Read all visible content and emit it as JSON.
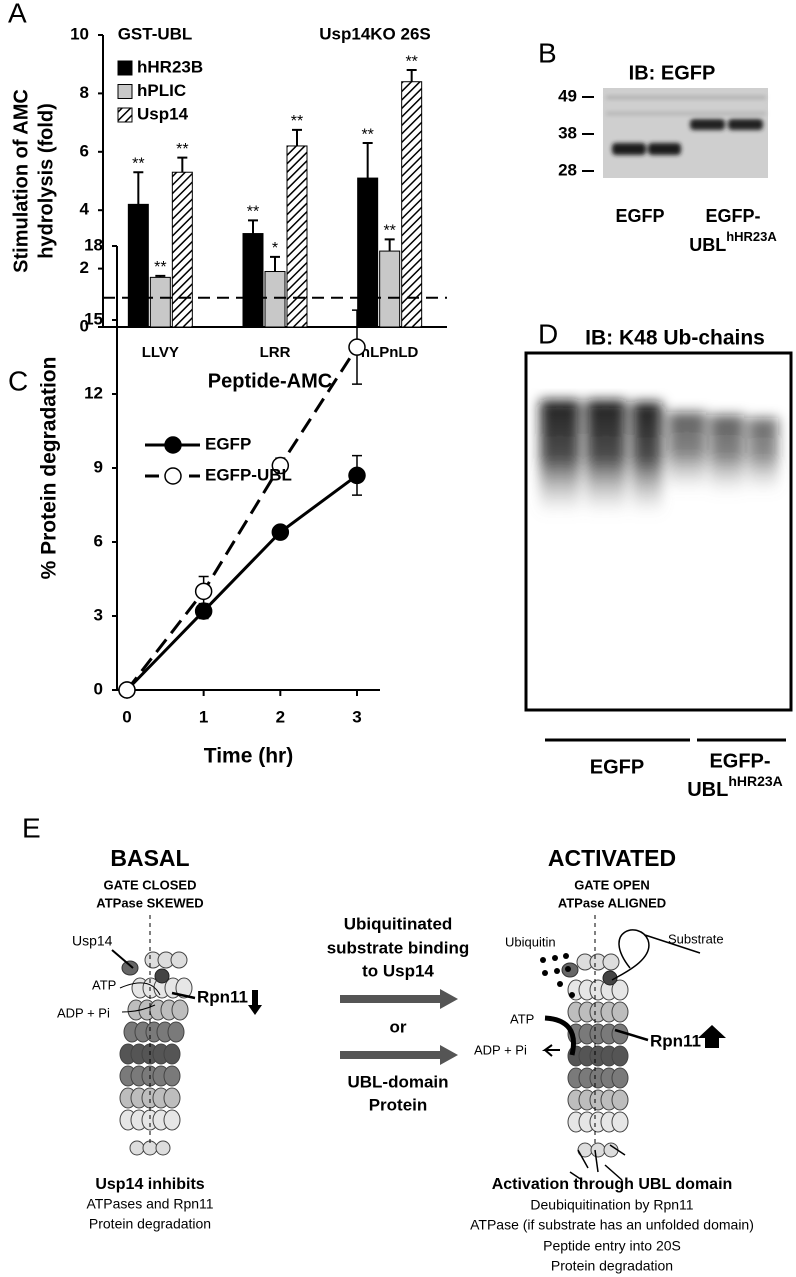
{
  "chart_data": [
    {
      "type": "bar",
      "panel_label": "A",
      "ylabel": [
        "Stimulation of AMC",
        "hydrolysis (fold)"
      ],
      "xlabel": "Peptide-AMC",
      "annotations": [
        "GST-UBL",
        "Usp14KO 26S"
      ],
      "categories": [
        "LLVY",
        "LRR",
        "nLPnLD"
      ],
      "series": [
        {
          "name": "hHR23B",
          "color": "#000000",
          "values": [
            4.2,
            3.2,
            5.1
          ],
          "errors": [
            1.1,
            0.45,
            1.2
          ],
          "significance": [
            "**",
            "**",
            "**"
          ]
        },
        {
          "name": "hPLIC",
          "color": "#c8c8c8",
          "values": [
            1.7,
            1.9,
            2.6
          ],
          "errors": [
            0.05,
            0.5,
            0.4
          ],
          "significance": [
            "**",
            "*",
            "**"
          ]
        },
        {
          "name": "Usp14",
          "color": "#ffffff",
          "pattern": "hatch",
          "values": [
            5.3,
            6.2,
            8.4
          ],
          "errors": [
            0.5,
            0.55,
            0.4
          ],
          "significance": [
            "**",
            "**",
            "**"
          ]
        }
      ],
      "ylim": [
        0,
        10
      ],
      "yticks": [
        0,
        2,
        4,
        6,
        8,
        10
      ],
      "reference_line": 1,
      "error_bars": "upper",
      "legend": "upper-left",
      "grid": false
    },
    {
      "type": "line",
      "panel_label": "C",
      "xlabel": "Time (hr)",
      "ylabel": "% Protein degradation",
      "x": [
        0,
        1,
        2,
        3
      ],
      "series": [
        {
          "name": "EGFP",
          "color": "#000000",
          "marker_fill": "#000000",
          "dashed": false,
          "values": [
            0,
            3.2,
            6.4,
            8.7
          ],
          "errors": [
            0,
            0.3,
            0.2,
            0.8
          ]
        },
        {
          "name": "EGFP-UBL",
          "color": "#000000",
          "marker_fill": "#ffffff",
          "dashed": true,
          "values": [
            0,
            4,
            9.1,
            13.9
          ],
          "errors": [
            0,
            0.6,
            0.3,
            1.5
          ]
        }
      ],
      "xlim": [
        -0.13,
        3.3
      ],
      "ylim": [
        0,
        18
      ],
      "xticks": [
        0,
        1,
        2,
        3
      ],
      "yticks": [
        0,
        3,
        6,
        9,
        12,
        15,
        18
      ],
      "error_bars": "both",
      "legend": "upper-left",
      "grid": false
    }
  ],
  "blot_b": {
    "panel_label": "B",
    "title": "IB: EGFP",
    "markers": [
      49,
      38,
      28
    ],
    "lane_1": "EGFP",
    "lane_2": "EGFP-",
    "lane_2_line2": "UBL",
    "lane_2_superscript": "hHR23A"
  },
  "blot_d": {
    "panel_label": "D",
    "title": "IB: K48 Ub-chains",
    "lane_1": "EGFP",
    "lane_2": "EGFP-",
    "lane_2_line2": "UBL",
    "lane_2_superscript": "hHR23A"
  },
  "diagram_e": {
    "panel_label": "E",
    "basal": {
      "title": "BASAL",
      "state_1": "GATE CLOSED",
      "state_2": "ATPase SKEWED",
      "usp14": "Usp14",
      "atp": "ATP",
      "adp": "ADP + Pi",
      "rpn11": "Rpn11",
      "summary_title": "Usp14 inhibits",
      "summary": [
        "ATPases and Rpn11",
        "Protein degradation"
      ]
    },
    "center": {
      "top": [
        "Ubiquitinated",
        "substrate binding",
        "to Usp14"
      ],
      "or": "or",
      "bottom": [
        "UBL-domain",
        "Protein"
      ]
    },
    "activated": {
      "title": "ACTIVATED",
      "state_1": "GATE OPEN",
      "state_2": "ATPase ALIGNED",
      "ubiquitin": "Ubiquitin",
      "substrate": "Substrate",
      "atp": "ATP",
      "adp": "ADP + Pi",
      "rpn11": "Rpn11",
      "summary_title": "Activation through UBL domain",
      "summary": [
        "Deubiquitination by Rpn11",
        "ATPase (if substrate has an unfolded domain)",
        "Peptide entry into 20S",
        "Protein degradation"
      ]
    }
  }
}
